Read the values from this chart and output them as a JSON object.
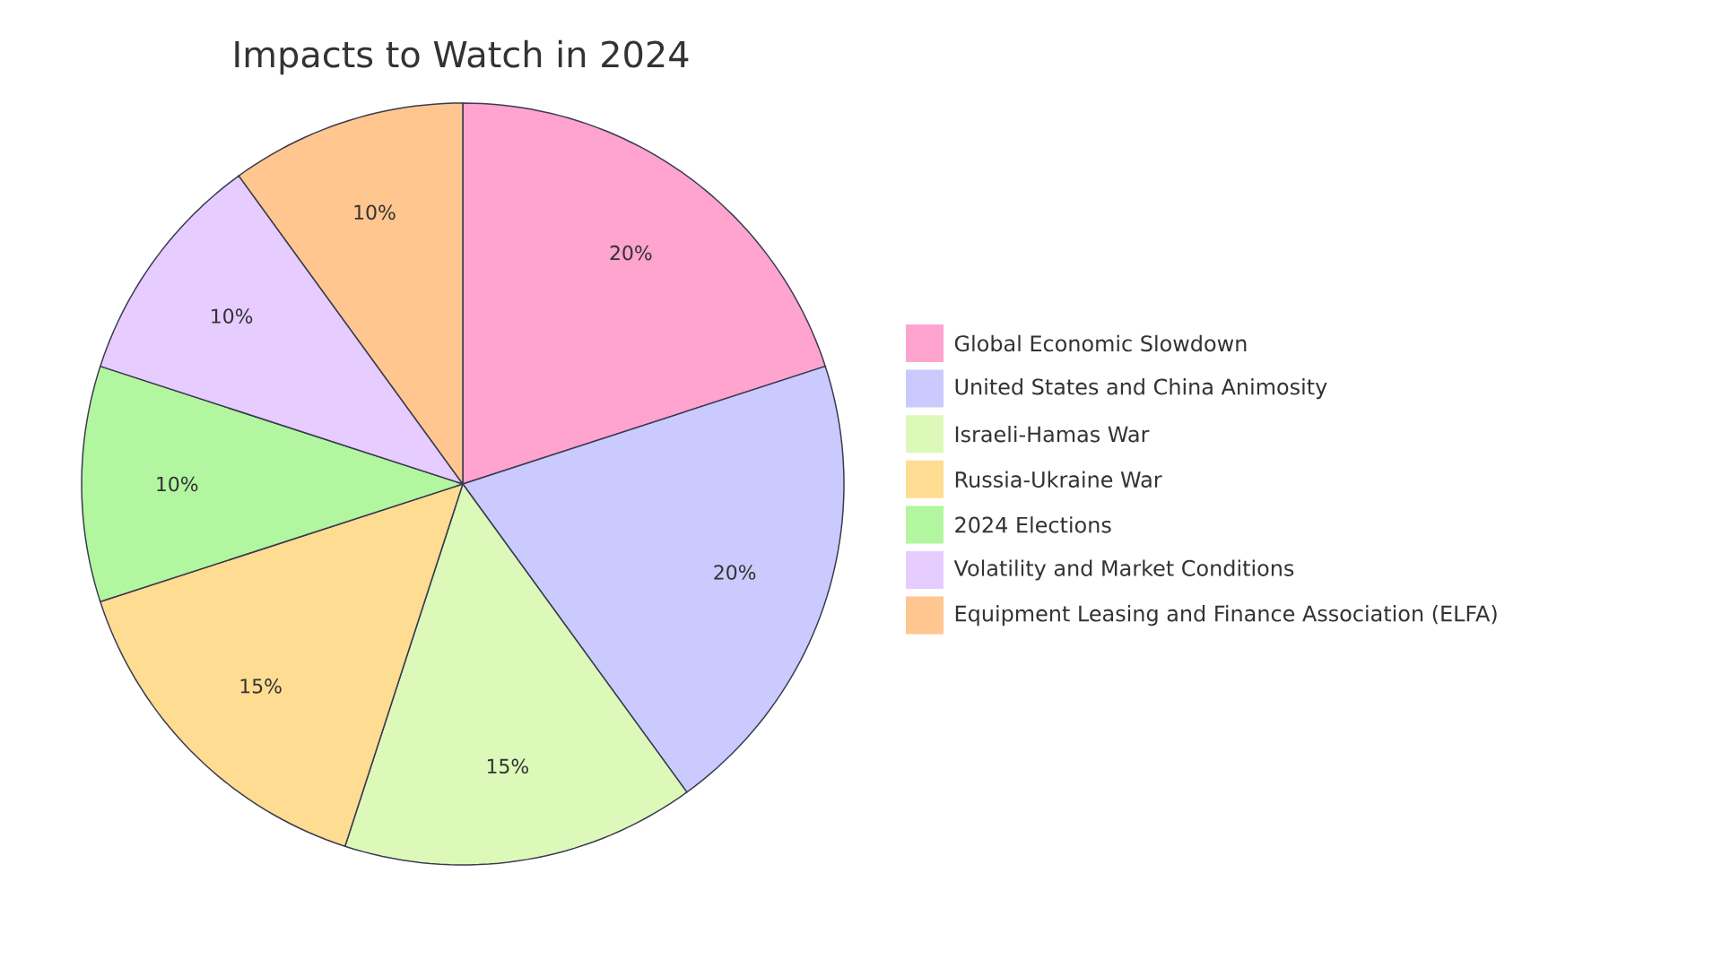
{
  "chart_data": {
    "type": "pie",
    "title": "Impacts to Watch in 2024",
    "categories": [
      "Global Economic Slowdown",
      "United States and China Animosity",
      "Israeli-Hamas War",
      "Russia-Ukraine War",
      "2024 Elections",
      "Volatility and Market Conditions",
      "Equipment Leasing and Finance Association (ELFA)"
    ],
    "values": [
      20,
      20,
      15,
      15,
      10,
      10,
      10
    ],
    "value_labels": [
      "20%",
      "20%",
      "15%",
      "15%",
      "10%",
      "10%",
      "10%"
    ],
    "colors": [
      "#ffa3cf",
      "#cacaff",
      "#dcf9ba",
      "#fedc92",
      "#b3f6a0",
      "#e6ccff",
      "#ffc690"
    ],
    "legend": "right"
  }
}
